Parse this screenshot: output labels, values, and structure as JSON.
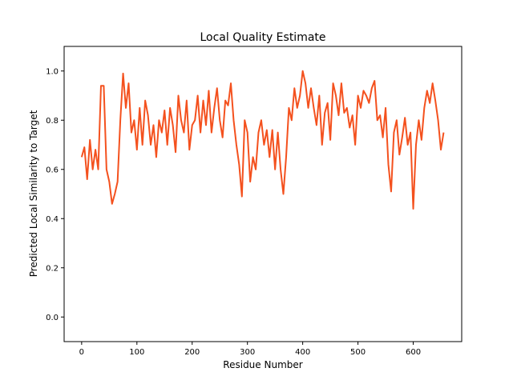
{
  "chart_data": {
    "type": "line",
    "title": "Local Quality Estimate",
    "x_label": "Residue Number",
    "y_label": "Predicted Local Similarity to Target",
    "xlim": [
      -31.7,
      687.7
    ],
    "ylim": [
      -0.1,
      1.1
    ],
    "xticks": [
      0,
      100,
      200,
      300,
      400,
      500,
      600
    ],
    "yticks": [
      {
        "value": 0,
        "label": "0.0"
      },
      0.2,
      0.4,
      0.6,
      0.8,
      {
        "value": 1,
        "label": "1.0"
      }
    ],
    "x": [
      0,
      5,
      10,
      15,
      20,
      25,
      30,
      35,
      40,
      45,
      50,
      55,
      60,
      65,
      70,
      75,
      80,
      85,
      90,
      95,
      100,
      105,
      110,
      115,
      120,
      125,
      130,
      135,
      140,
      145,
      150,
      155,
      160,
      165,
      170,
      175,
      180,
      185,
      190,
      195,
      200,
      205,
      210,
      215,
      220,
      225,
      230,
      235,
      240,
      245,
      250,
      255,
      260,
      265,
      270,
      275,
      280,
      285,
      290,
      295,
      300,
      305,
      310,
      315,
      320,
      325,
      330,
      335,
      340,
      345,
      350,
      355,
      360,
      365,
      370,
      375,
      380,
      385,
      390,
      395,
      400,
      405,
      410,
      415,
      420,
      425,
      430,
      435,
      440,
      445,
      450,
      455,
      460,
      465,
      470,
      475,
      480,
      485,
      490,
      495,
      500,
      505,
      510,
      515,
      520,
      525,
      530,
      535,
      540,
      545,
      550,
      555,
      560,
      565,
      570,
      575,
      580,
      585,
      590,
      595,
      600,
      605,
      610,
      615,
      620,
      625,
      630,
      635,
      640,
      645,
      650,
      655
    ],
    "series": [
      {
        "color": "#f4511e",
        "values": [
          0.65,
          0.69,
          0.56,
          0.72,
          0.6,
          0.68,
          0.6,
          0.94,
          0.94,
          0.6,
          0.55,
          0.46,
          0.5,
          0.55,
          0.8,
          0.99,
          0.85,
          0.95,
          0.75,
          0.8,
          0.68,
          0.85,
          0.7,
          0.88,
          0.82,
          0.7,
          0.78,
          0.65,
          0.8,
          0.75,
          0.84,
          0.7,
          0.85,
          0.78,
          0.67,
          0.9,
          0.8,
          0.75,
          0.88,
          0.68,
          0.78,
          0.8,
          0.9,
          0.75,
          0.88,
          0.78,
          0.92,
          0.75,
          0.85,
          0.93,
          0.8,
          0.73,
          0.88,
          0.86,
          0.95,
          0.8,
          0.7,
          0.62,
          0.49,
          0.8,
          0.75,
          0.55,
          0.65,
          0.6,
          0.75,
          0.8,
          0.7,
          0.76,
          0.65,
          0.76,
          0.6,
          0.75,
          0.6,
          0.5,
          0.65,
          0.85,
          0.8,
          0.93,
          0.85,
          0.9,
          1.0,
          0.95,
          0.85,
          0.93,
          0.85,
          0.78,
          0.9,
          0.7,
          0.83,
          0.87,
          0.72,
          0.95,
          0.9,
          0.82,
          0.95,
          0.83,
          0.85,
          0.77,
          0.82,
          0.7,
          0.9,
          0.85,
          0.92,
          0.9,
          0.87,
          0.93,
          0.96,
          0.8,
          0.82,
          0.73,
          0.85,
          0.62,
          0.51,
          0.75,
          0.8,
          0.66,
          0.73,
          0.81,
          0.7,
          0.75,
          0.44,
          0.7,
          0.8,
          0.72,
          0.85,
          0.92,
          0.87,
          0.95,
          0.88,
          0.8,
          0.68,
          0.75
        ]
      }
    ]
  }
}
